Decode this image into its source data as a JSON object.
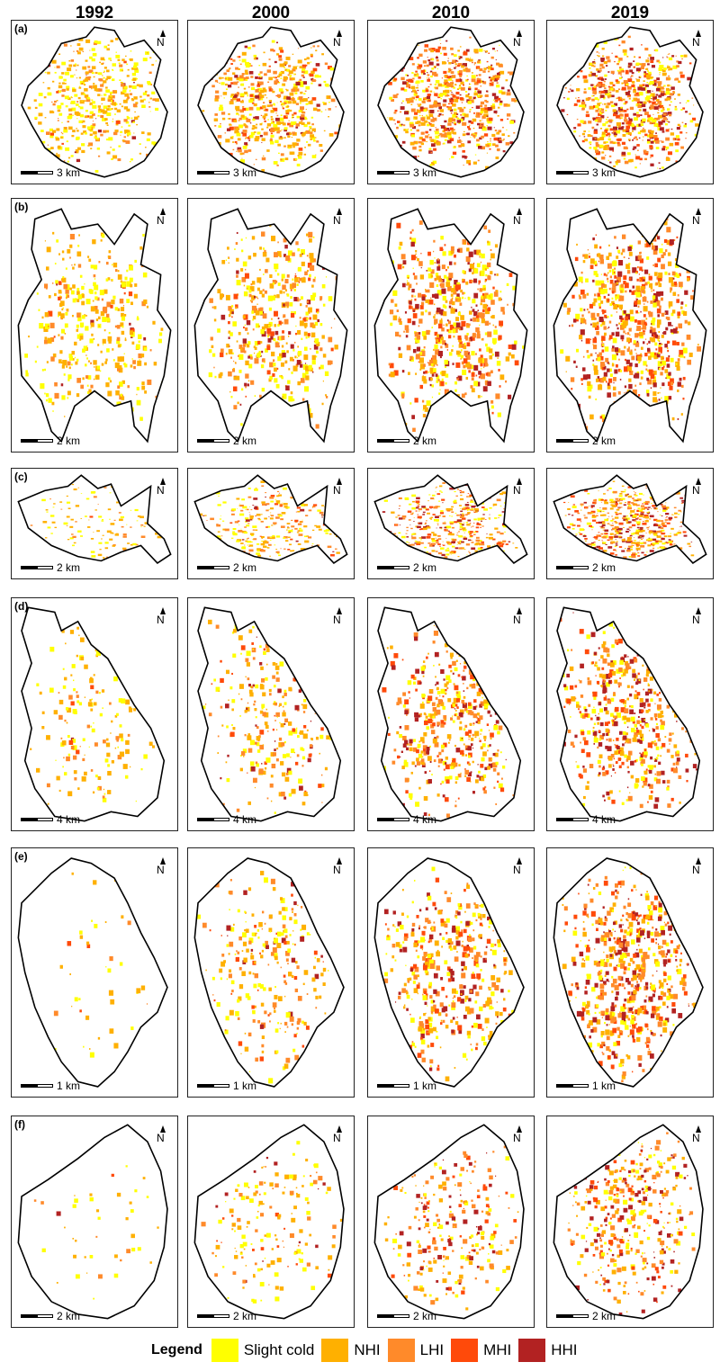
{
  "years": [
    "1992",
    "2000",
    "2010",
    "2019"
  ],
  "rows": [
    {
      "label": "(a)",
      "scale": "3 km",
      "shape": "blob"
    },
    {
      "label": "(b)",
      "scale": "2 km",
      "shape": "tall"
    },
    {
      "label": "(c)",
      "scale": "2 km",
      "shape": "wide"
    },
    {
      "label": "(d)",
      "scale": "4 km",
      "shape": "diag"
    },
    {
      "label": "(e)",
      "scale": "1 km",
      "shape": "poly"
    },
    {
      "label": "(f)",
      "scale": "2 km",
      "shape": "poly2"
    }
  ],
  "north_letter": "N",
  "legend": {
    "title": "Legend",
    "items": [
      {
        "label": "Slight cold",
        "color": "#ffff00"
      },
      {
        "label": "NHI",
        "color": "#ffb000"
      },
      {
        "label": "LHI",
        "color": "#ff8a2a"
      },
      {
        "label": "MHI",
        "color": "#ff4a0a"
      },
      {
        "label": "HHI",
        "color": "#b22222"
      }
    ]
  }
}
